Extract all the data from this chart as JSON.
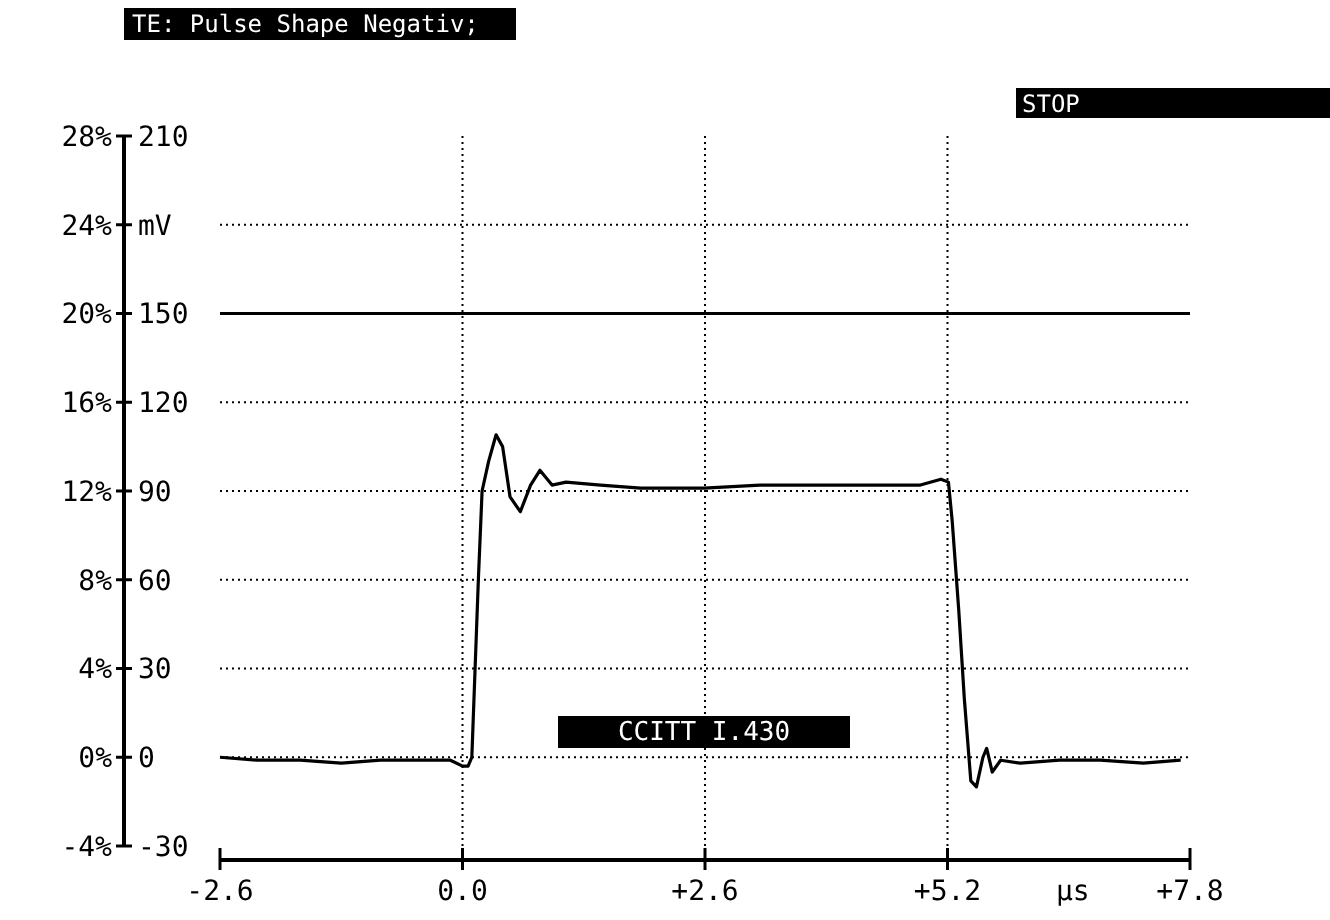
{
  "chart_data": {
    "type": "line",
    "title": "TE: Pulse Shape Negativ;",
    "xlabel": "µs",
    "annotations": [
      "STOP",
      "CCITT I.430"
    ],
    "xlim": [
      -2.6,
      7.8
    ],
    "xticks": [
      -2.6,
      {
        "value": 0,
        "label": "0.0"
      },
      {
        "value": 2.6,
        "label": "+2.6"
      },
      {
        "value": 5.2,
        "label": "+5.2"
      },
      {
        "value": 7.8,
        "label": "+7.8"
      }
    ],
    "ylim": [
      -30,
      210
    ],
    "yticks": [
      -30,
      0,
      30,
      60,
      90,
      120,
      150,
      {
        "value": 180,
        "label": "mV"
      },
      210
    ],
    "y2lim": [
      -4,
      28
    ],
    "y2ticks": [
      {
        "value": -4,
        "label": "-4%"
      },
      {
        "value": 0,
        "label": "0%"
      },
      {
        "value": 4,
        "label": "4%"
      },
      {
        "value": 8,
        "label": "8%"
      },
      {
        "value": 12,
        "label": "12%"
      },
      {
        "value": 16,
        "label": "16%"
      },
      {
        "value": 20,
        "label": "20%"
      },
      {
        "value": 24,
        "label": "24%"
      },
      {
        "value": 28,
        "label": "28%"
      }
    ],
    "grid": true,
    "line_style": "solid",
    "ref_lines": [
      {
        "axis": "y",
        "value": 150,
        "label": null,
        "line_style": "solid"
      }
    ],
    "series": [
      {
        "color": "#000000",
        "x": [
          -2.6,
          -2.2,
          -1.74,
          -1.3,
          -0.88,
          -0.5,
          -0.13,
          0.0,
          0.06,
          0.1,
          0.17,
          0.21,
          0.28,
          0.36,
          0.43,
          0.51,
          0.62,
          0.73,
          0.83,
          0.96,
          1.11,
          1.48,
          1.91,
          2.59,
          3.19,
          4.05,
          4.91,
          5.13,
          5.21,
          5.25,
          5.32,
          5.38,
          5.45,
          5.51,
          5.58,
          5.62,
          5.68,
          5.77,
          5.98,
          6.4,
          6.84,
          7.3,
          7.7
        ],
        "values": [
          0,
          -1,
          -1,
          -2,
          -1,
          -1,
          -1,
          -3,
          -3,
          0,
          60,
          90,
          100,
          109,
          105,
          88,
          83,
          92,
          97,
          92,
          93,
          92,
          91,
          91,
          92,
          92,
          92,
          94,
          93,
          80,
          50,
          20,
          -8,
          -10,
          0,
          3,
          -5,
          -1,
          -2,
          -1,
          -1,
          -2,
          -1
        ]
      }
    ]
  }
}
